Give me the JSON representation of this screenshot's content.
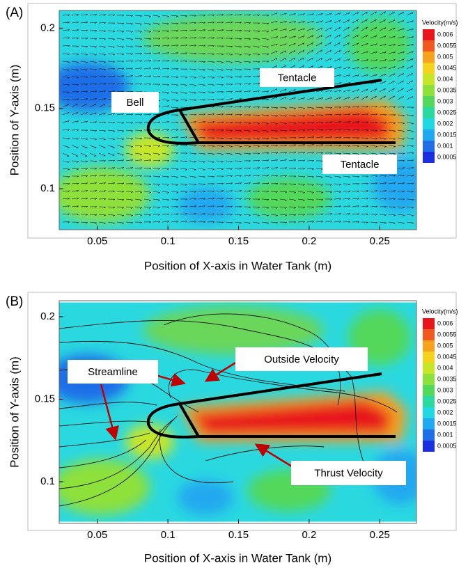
{
  "chart_data": [
    {
      "type": "contour",
      "panel_label": "(A)",
      "xlabel": "Position of X-axis in Water Tank (m)",
      "ylabel": "Position of Y-axis (m)",
      "xlim": [
        0.023,
        0.276
      ],
      "ylim": [
        0.0745,
        0.211
      ],
      "xticks": [
        0.05,
        0.1,
        0.15,
        0.2,
        0.25
      ],
      "yticks": [
        0.1,
        0.15,
        0.2
      ],
      "colorbar": {
        "title": "Velocity(m/s)",
        "levels": [
          0.006,
          0.0055,
          0.005,
          0.0045,
          0.004,
          0.0035,
          0.003,
          0.0025,
          0.002,
          0.0015,
          0.001,
          0.0005
        ],
        "colors": [
          "#e8161a",
          "#f05a1e",
          "#f7a21e",
          "#f5d21e",
          "#c8e628",
          "#8ee03a",
          "#52d85a",
          "#2ad8a0",
          "#22d8e0",
          "#20a8f0",
          "#1f6ee8",
          "#1b2ee0"
        ]
      },
      "annotations": [
        "Bell",
        "Tentacle",
        "Tentacle"
      ]
    },
    {
      "type": "contour",
      "panel_label": "(B)",
      "xlabel": "Position of X-axis in Water Tank (m)",
      "ylabel": "Position of Y-axis (m)",
      "xlim": [
        0.023,
        0.276
      ],
      "ylim": [
        0.0747,
        0.2097
      ],
      "xticks": [
        0.05,
        0.1,
        0.15,
        0.2,
        0.25
      ],
      "yticks": [
        0.1,
        0.15,
        0.2
      ],
      "colorbar": {
        "title": "Velocity(m/s)",
        "levels": [
          0.006,
          0.0055,
          0.005,
          0.0045,
          0.004,
          0.0035,
          0.003,
          0.0025,
          0.002,
          0.0015,
          0.001,
          0.0005
        ],
        "colors": [
          "#e8161a",
          "#f05a1e",
          "#f7a21e",
          "#f5d21e",
          "#c8e628",
          "#8ee03a",
          "#52d85a",
          "#2ad8a0",
          "#22d8e0",
          "#20a8f0",
          "#1f6ee8",
          "#1b2ee0"
        ]
      },
      "annotations": [
        "Streamline",
        "Outside Velocity",
        "Thrust Velocity"
      ]
    }
  ]
}
